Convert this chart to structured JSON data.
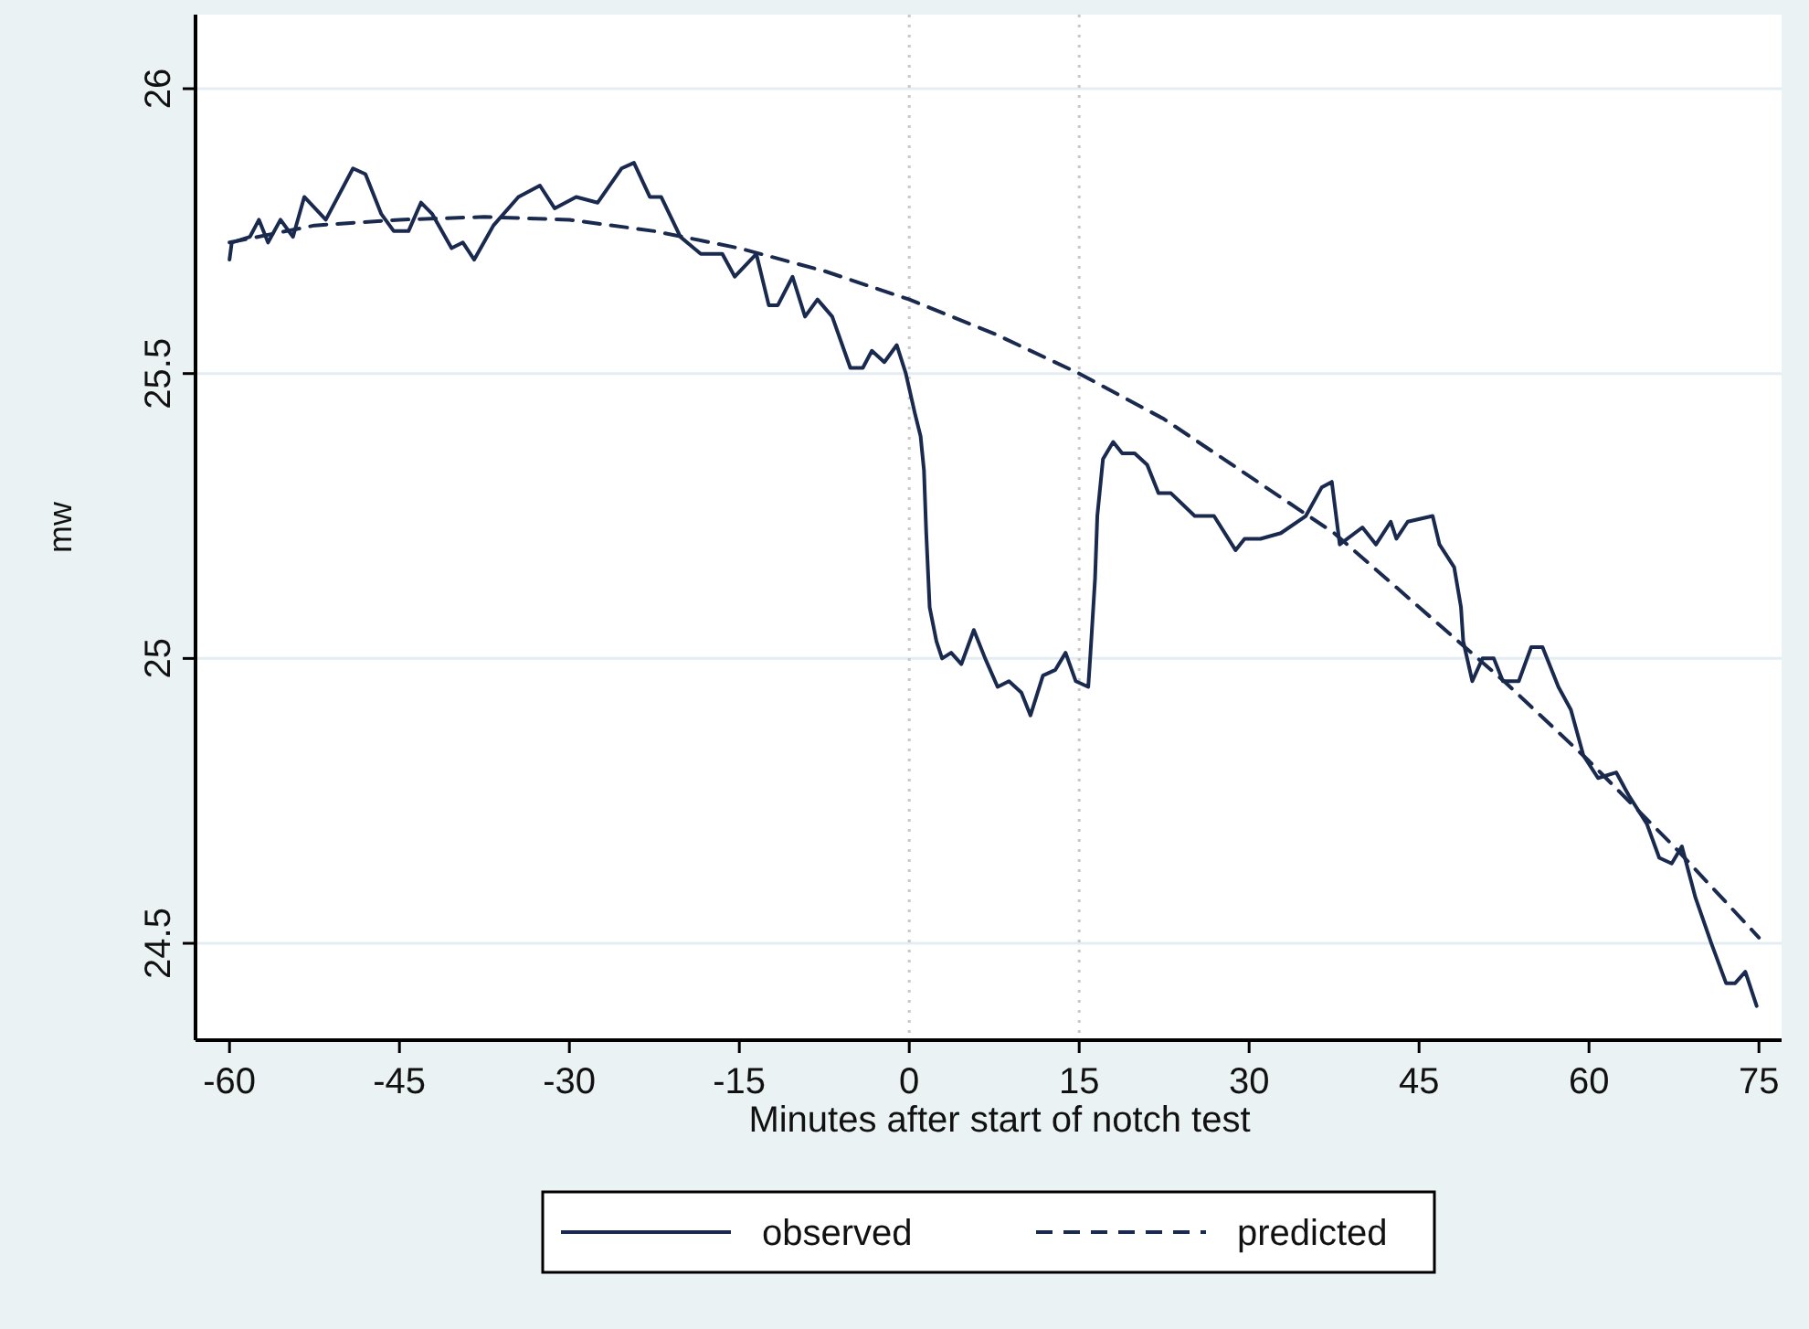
{
  "chart_data": {
    "type": "line",
    "xlabel": "Minutes after start of notch test",
    "ylabel": "mw",
    "xlim": [
      -63,
      77
    ],
    "xticks": [
      -60,
      -45,
      -30,
      -15,
      0,
      15,
      30,
      45,
      60,
      75
    ],
    "ylim": [
      24.33,
      26.13
    ],
    "yticks": [
      24.5,
      25,
      25.5,
      26
    ],
    "grid": "y",
    "legend": "bottom",
    "marker": "none",
    "ref_lines": [
      {
        "axis": "x",
        "value": 0,
        "color": "#c8c8c8",
        "line_style": "dotted"
      },
      {
        "axis": "x",
        "value": 15,
        "color": "#c8c8c8",
        "line_style": "dotted"
      }
    ],
    "series": [
      {
        "name": "observed",
        "color": "#1a2a4f",
        "line_style": "solid",
        "x": [
          -60,
          -59.8,
          -58.2,
          -57.4,
          -56.6,
          -55.5,
          -54.4,
          -53.4,
          -51.5,
          -49.1,
          -48,
          -46.6,
          -45.5,
          -44.2,
          -43.1,
          -42.1,
          -40.4,
          -39.4,
          -38.4,
          -36.7,
          -34.5,
          -32.6,
          -31.3,
          -29.4,
          -27.5,
          -25.4,
          -24.3,
          -22.9,
          -21.9,
          -20.2,
          -18.4,
          -16.5,
          -15.4,
          -13.5,
          -12.4,
          -11.6,
          -10.3,
          -9.2,
          -8.1,
          -6.8,
          -5.2,
          -4.1,
          -3.3,
          -2.2,
          -1.1,
          -0.3,
          0.5,
          1,
          1.3,
          1.5,
          1.8,
          2.4,
          2.9,
          3.7,
          4.6,
          5.7,
          6.7,
          7.8,
          8.8,
          9.9,
          10.7,
          11.8,
          12.9,
          13.8,
          14.7,
          15.8,
          16,
          16.4,
          16.6,
          17.1,
          18,
          18.8,
          19.9,
          21,
          22,
          23.1,
          25.2,
          26.9,
          28.8,
          29.6,
          31,
          32.8,
          35,
          36.4,
          37.3,
          38,
          40,
          41.2,
          42.5,
          43,
          44,
          46.2,
          46.8,
          48.1,
          48.7,
          48.9,
          49.7,
          50.6,
          51.6,
          52.4,
          53.8,
          54.9,
          55.9,
          57.3,
          58.4,
          59.5,
          60.8,
          62.4,
          63.5,
          65.1,
          66.2,
          67.3,
          68.2,
          69.4,
          70.8,
          72.1,
          72.9,
          73.8,
          74.8
        ],
        "values": [
          25.7,
          25.73,
          25.74,
          25.77,
          25.73,
          25.77,
          25.74,
          25.81,
          25.77,
          25.86,
          25.85,
          25.78,
          25.75,
          25.75,
          25.8,
          25.78,
          25.72,
          25.73,
          25.7,
          25.76,
          25.81,
          25.83,
          25.79,
          25.81,
          25.8,
          25.86,
          25.87,
          25.81,
          25.81,
          25.74,
          25.71,
          25.71,
          25.67,
          25.71,
          25.62,
          25.62,
          25.67,
          25.6,
          25.63,
          25.6,
          25.51,
          25.51,
          25.54,
          25.52,
          25.55,
          25.5,
          25.43,
          25.39,
          25.33,
          25.22,
          25.09,
          25.03,
          25.0,
          25.01,
          24.99,
          25.05,
          25.0,
          24.95,
          24.96,
          24.94,
          24.9,
          24.97,
          24.98,
          25.01,
          24.96,
          24.95,
          25.01,
          25.14,
          25.25,
          25.35,
          25.38,
          25.36,
          25.36,
          25.34,
          25.29,
          25.29,
          25.25,
          25.25,
          25.19,
          25.21,
          25.21,
          25.22,
          25.25,
          25.3,
          25.31,
          25.2,
          25.23,
          25.2,
          25.24,
          25.21,
          25.24,
          25.25,
          25.2,
          25.16,
          25.09,
          25.03,
          24.96,
          25.0,
          25.0,
          24.96,
          24.96,
          25.02,
          25.02,
          24.95,
          24.91,
          24.83,
          24.79,
          24.8,
          24.76,
          24.71,
          24.65,
          24.64,
          24.67,
          24.58,
          24.5,
          24.43,
          24.43,
          24.45,
          24.39
        ]
      },
      {
        "name": "predicted",
        "color": "#1a2a4f",
        "line_style": "dashed",
        "x": [
          -60,
          -52.5,
          -45,
          -37.5,
          -30,
          -22.5,
          -15,
          -7.5,
          0,
          7.5,
          15,
          22.5,
          30,
          37.5,
          45,
          52.5,
          60,
          67.5,
          75
        ],
        "values": [
          25.73,
          25.76,
          25.77,
          25.775,
          25.77,
          25.75,
          25.72,
          25.68,
          25.63,
          25.57,
          25.5,
          25.42,
          25.32,
          25.22,
          25.09,
          24.96,
          24.82,
          24.67,
          24.51
        ]
      }
    ]
  }
}
